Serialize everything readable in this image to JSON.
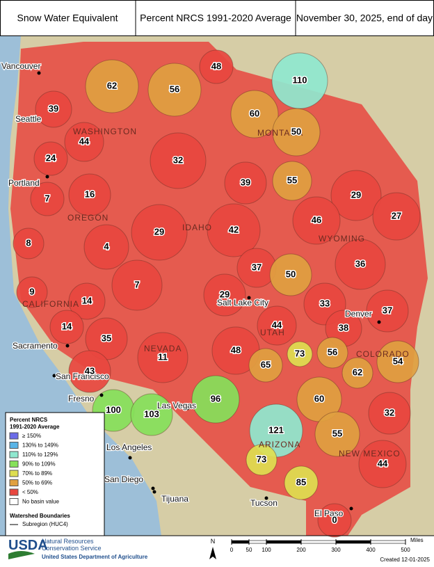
{
  "header": {
    "title": "Snow Water Equivalent",
    "subtitle": "Percent NRCS 1991-2020 Average",
    "date": "November 30, 2025, end of day"
  },
  "basins": [
    {
      "value": 48,
      "color": "#e8473f"
    },
    {
      "value": 110,
      "color": "#8fe8cf"
    },
    {
      "value": 62,
      "color": "#e0a040"
    },
    {
      "value": 56,
      "color": "#e0a040"
    },
    {
      "value": 39,
      "color": "#e8473f"
    },
    {
      "value": 60,
      "color": "#e0a040"
    },
    {
      "value": 50,
      "color": "#e0a040"
    },
    {
      "value": 44,
      "color": "#e8473f"
    },
    {
      "value": 24,
      "color": "#e8473f"
    },
    {
      "value": 32,
      "color": "#e8473f"
    },
    {
      "value": 55,
      "color": "#e0a040"
    },
    {
      "value": 39,
      "color": "#e8473f"
    },
    {
      "value": 29,
      "color": "#e8473f"
    },
    {
      "value": 7,
      "color": "#e8473f"
    },
    {
      "value": 16,
      "color": "#e8473f"
    },
    {
      "value": 27,
      "color": "#e8473f"
    },
    {
      "value": 46,
      "color": "#e8473f"
    },
    {
      "value": 29,
      "color": "#e8473f"
    },
    {
      "value": 42,
      "color": "#e8473f"
    },
    {
      "value": 8,
      "color": "#e8473f"
    },
    {
      "value": 4,
      "color": "#e8473f"
    },
    {
      "value": 37,
      "color": "#e8473f"
    },
    {
      "value": 50,
      "color": "#e0a040"
    },
    {
      "value": 36,
      "color": "#e8473f"
    },
    {
      "value": 7,
      "color": "#e8473f"
    },
    {
      "value": 29,
      "color": "#e8473f"
    },
    {
      "value": 9,
      "color": "#e8473f"
    },
    {
      "value": 14,
      "color": "#e8473f"
    },
    {
      "value": 33,
      "color": "#e8473f"
    },
    {
      "value": 37,
      "color": "#e8473f"
    },
    {
      "value": 14,
      "color": "#e8473f"
    },
    {
      "value": 44,
      "color": "#e8473f"
    },
    {
      "value": 38,
      "color": "#e8473f"
    },
    {
      "value": 35,
      "color": "#e8473f"
    },
    {
      "value": 73,
      "color": "#dede50"
    },
    {
      "value": 56,
      "color": "#e0a040"
    },
    {
      "value": 48,
      "color": "#e8473f"
    },
    {
      "value": 54,
      "color": "#e0a040"
    },
    {
      "value": 11,
      "color": "#e8473f"
    },
    {
      "value": 65,
      "color": "#e0a040"
    },
    {
      "value": 43,
      "color": "#e8473f"
    },
    {
      "value": 62,
      "color": "#e0a040"
    },
    {
      "value": 60,
      "color": "#e0a040"
    },
    {
      "value": 96,
      "color": "#86e05a"
    },
    {
      "value": 100,
      "color": "#86e05a"
    },
    {
      "value": 103,
      "color": "#86e05a"
    },
    {
      "value": 32,
      "color": "#e8473f"
    },
    {
      "value": 121,
      "color": "#8fe8cf"
    },
    {
      "value": 55,
      "color": "#e0a040"
    },
    {
      "value": 44,
      "color": "#e8473f"
    },
    {
      "value": 73,
      "color": "#dede50"
    },
    {
      "value": 85,
      "color": "#dede50"
    },
    {
      "value": 0,
      "color": "#e8473f"
    }
  ],
  "cities": [
    "Vancouver",
    "Seattle",
    "Portland",
    "Sacramento",
    "San Francisco",
    "Fresno",
    "Las Vegas",
    "Los Angeles",
    "San Diego",
    "Tijuana",
    "Salt Lake City",
    "Denver",
    "Tucson",
    "El Paso"
  ],
  "states": [
    "WASHINGTON",
    "OREGON",
    "IDAHO",
    "MONTANA",
    "WYOMING",
    "CALIFORNIA",
    "NEVADA",
    "UTAH",
    "COLORADO",
    "ARIZONA",
    "NEW MEXICO"
  ],
  "legend": {
    "title": "Percent NRCS",
    "subtitle": "1991-2020 Average",
    "items": [
      {
        "label": "≥ 150%",
        "color": "#6b6be8"
      },
      {
        "label": "130% to 149%",
        "color": "#5ab4e6"
      },
      {
        "label": "110% to 129%",
        "color": "#8fe8cf"
      },
      {
        "label": "90% to 109%",
        "color": "#86e05a"
      },
      {
        "label": "70% to 89%",
        "color": "#dede50"
      },
      {
        "label": "50% to 69%",
        "color": "#e0a040"
      },
      {
        "label": "< 50%",
        "color": "#e8473f"
      },
      {
        "label": "No basin value",
        "color": "#ffffff"
      }
    ],
    "boundaries_title": "Watershed Boundaries",
    "boundaries_item": "Subregion (HUC4)"
  },
  "scale": {
    "unit": "Miles",
    "north": "N",
    "ticks": [
      0,
      50,
      100,
      200,
      300,
      400,
      500
    ]
  },
  "footer": {
    "logo": "USDA",
    "agency_line1": "Natural Resources",
    "agency_line2": "Conservation Service",
    "department": "United States Department of Agriculture",
    "created": "Created 12-01-2025"
  }
}
